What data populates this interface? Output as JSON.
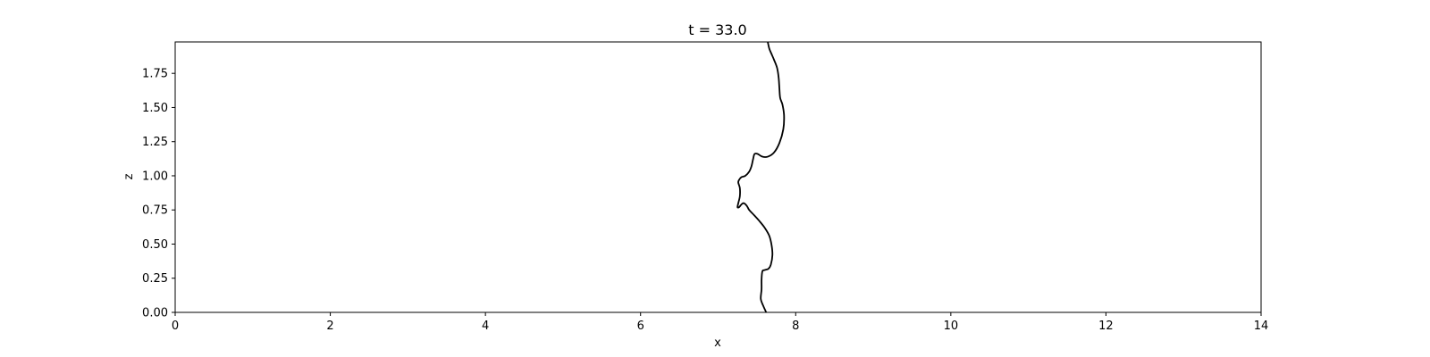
{
  "chart_data": {
    "type": "line",
    "title": "t = 33.0",
    "xlabel": "x",
    "ylabel": "z",
    "xlim": [
      0,
      14
    ],
    "ylim": [
      0,
      1.98
    ],
    "x_ticks": [
      0,
      2,
      4,
      6,
      8,
      10,
      12,
      14
    ],
    "x_tick_labels": [
      "0",
      "2",
      "4",
      "6",
      "8",
      "10",
      "12",
      "14"
    ],
    "y_ticks": [
      0,
      0.25,
      0.5,
      0.75,
      1.0,
      1.25,
      1.5,
      1.75
    ],
    "y_tick_labels": [
      "0.00",
      "0.25",
      "0.50",
      "0.75",
      "1.00",
      "1.25",
      "1.50",
      "1.75"
    ],
    "grid": false,
    "series": [
      {
        "color": "#000000",
        "points": [
          [
            7.62,
            0.0
          ],
          [
            7.58,
            0.05
          ],
          [
            7.55,
            0.1
          ],
          [
            7.56,
            0.17
          ],
          [
            7.56,
            0.24
          ],
          [
            7.57,
            0.3
          ],
          [
            7.6,
            0.31
          ],
          [
            7.65,
            0.32
          ],
          [
            7.68,
            0.35
          ],
          [
            7.7,
            0.42
          ],
          [
            7.69,
            0.49
          ],
          [
            7.66,
            0.56
          ],
          [
            7.6,
            0.62
          ],
          [
            7.53,
            0.67
          ],
          [
            7.45,
            0.72
          ],
          [
            7.4,
            0.75
          ],
          [
            7.37,
            0.78
          ],
          [
            7.33,
            0.8
          ],
          [
            7.3,
            0.79
          ],
          [
            7.27,
            0.77
          ],
          [
            7.25,
            0.77
          ],
          [
            7.26,
            0.8
          ],
          [
            7.28,
            0.85
          ],
          [
            7.28,
            0.91
          ],
          [
            7.26,
            0.95
          ],
          [
            7.27,
            0.97
          ],
          [
            7.3,
            0.99
          ],
          [
            7.35,
            1.0
          ],
          [
            7.4,
            1.03
          ],
          [
            7.43,
            1.07
          ],
          [
            7.45,
            1.12
          ],
          [
            7.47,
            1.16
          ],
          [
            7.51,
            1.16
          ],
          [
            7.57,
            1.14
          ],
          [
            7.64,
            1.14
          ],
          [
            7.72,
            1.17
          ],
          [
            7.79,
            1.24
          ],
          [
            7.84,
            1.34
          ],
          [
            7.85,
            1.44
          ],
          [
            7.83,
            1.52
          ],
          [
            7.8,
            1.57
          ],
          [
            7.79,
            1.64
          ],
          [
            7.78,
            1.72
          ],
          [
            7.76,
            1.79
          ],
          [
            7.72,
            1.85
          ],
          [
            7.69,
            1.89
          ],
          [
            7.66,
            1.93
          ],
          [
            7.64,
            1.98
          ]
        ]
      }
    ]
  }
}
